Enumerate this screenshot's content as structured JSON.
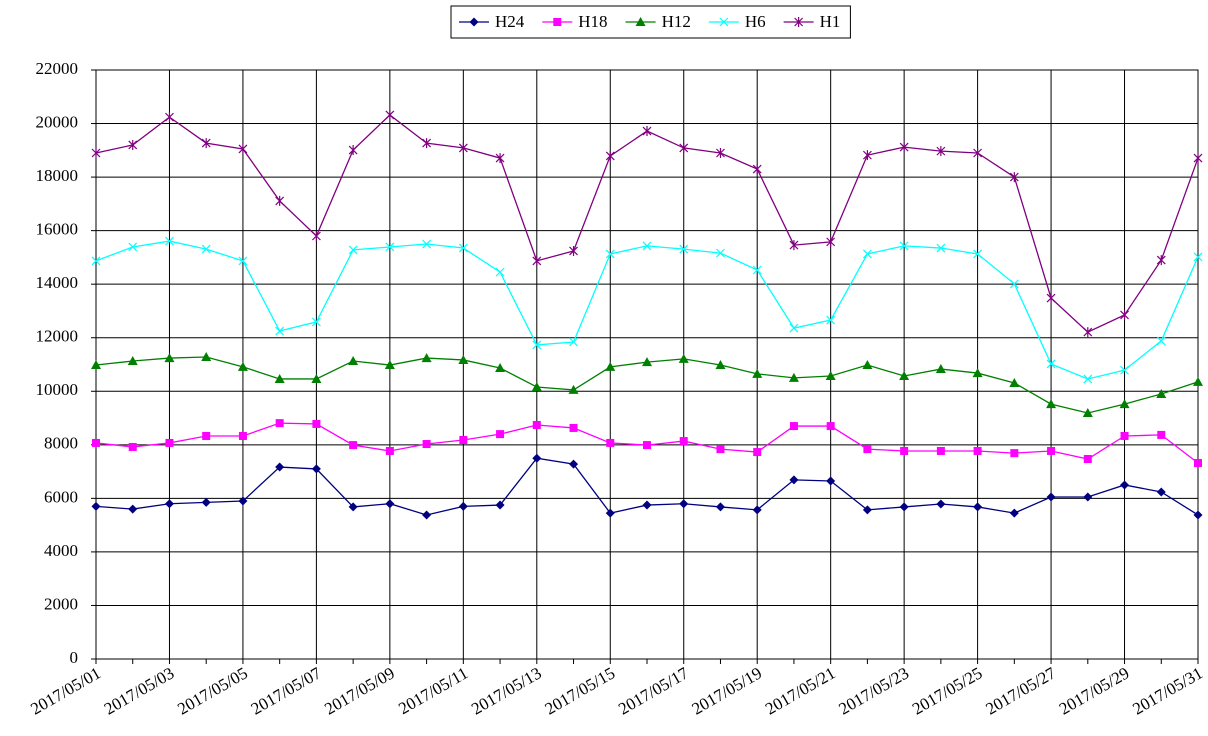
{
  "chart_data": {
    "type": "line",
    "categories": [
      "2017/05/01",
      null,
      "2017/05/03",
      null,
      "2017/05/05",
      null,
      "2017/05/07",
      null,
      "2017/05/09",
      null,
      "2017/05/11",
      null,
      "2017/05/13",
      null,
      "2017/05/15",
      null,
      "2017/05/17",
      null,
      "2017/05/19",
      null,
      "2017/05/21",
      null,
      "2017/05/23",
      null,
      "2017/05/25",
      null,
      "2017/05/27",
      null,
      "2017/05/29",
      null,
      "2017/05/31"
    ],
    "series": [
      {
        "name": "H24",
        "color": "#000080",
        "marker": "diamond",
        "values": [
          5700,
          5600,
          5800,
          5850,
          5900,
          7170,
          7100,
          5680,
          5800,
          5380,
          5700,
          5750,
          7500,
          7280,
          5450,
          5750,
          5800,
          5680,
          5570,
          6690,
          6650,
          5570,
          5680,
          5790,
          5680,
          5450,
          6050,
          6050,
          6500,
          6240,
          5380
        ]
      },
      {
        "name": "H18",
        "color": "#ff00ff",
        "marker": "square",
        "values": [
          8070,
          7920,
          8070,
          8330,
          8330,
          8810,
          8780,
          7990,
          7770,
          8030,
          8180,
          8400,
          8740,
          8630,
          8070,
          7990,
          8140,
          7840,
          7730,
          8700,
          8700,
          7840,
          7770,
          7770,
          7770,
          7690,
          7770,
          7470,
          8330,
          8370,
          7320
        ]
      },
      {
        "name": "H12",
        "color": "#008000",
        "marker": "triangle",
        "values": [
          10980,
          11130,
          11240,
          11280,
          10910,
          10460,
          10460,
          11130,
          10980,
          11240,
          11170,
          10870,
          10160,
          10050,
          10910,
          11090,
          11210,
          10980,
          10650,
          10500,
          10570,
          10980,
          10570,
          10830,
          10680,
          10310,
          9520,
          9190,
          9520,
          9900,
          10350
        ]
      },
      {
        "name": "H6",
        "color": "#00ffff",
        "marker": "x",
        "values": [
          14870,
          15390,
          15610,
          15310,
          14870,
          12250,
          12590,
          15280,
          15390,
          15500,
          15350,
          14450,
          11730,
          11840,
          15130,
          15430,
          15310,
          15160,
          14530,
          12360,
          12660,
          15130,
          15430,
          15350,
          15130,
          14010,
          11020,
          10460,
          10790,
          11880,
          15020
        ]
      },
      {
        "name": "H1",
        "color": "#800080",
        "marker": "star",
        "values": [
          18900,
          19200,
          20240,
          19270,
          19050,
          17110,
          15800,
          19010,
          20320,
          19270,
          19090,
          18710,
          14870,
          15240,
          18790,
          19720,
          19090,
          18900,
          18300,
          15460,
          15580,
          18820,
          19120,
          18970,
          18900,
          18000,
          13480,
          12210,
          12850,
          14900,
          18710
        ]
      }
    ],
    "ylim": [
      0,
      22000
    ],
    "yticks": [
      0,
      2000,
      4000,
      6000,
      8000,
      10000,
      12000,
      14000,
      16000,
      18000,
      20000,
      22000
    ],
    "grid": true,
    "legend": "top"
  }
}
